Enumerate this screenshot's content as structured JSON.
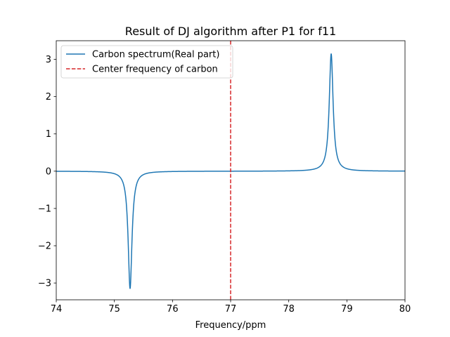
{
  "chart_data": {
    "type": "line",
    "title": "Result of DJ algorithm after P1 for f11",
    "xlabel": "Frequency/ppm",
    "ylabel": "",
    "xlim": [
      74,
      80
    ],
    "ylim": [
      -3.45,
      3.5
    ],
    "xticks": [
      74,
      75,
      76,
      77,
      78,
      79,
      80
    ],
    "xtick_labels": [
      "74",
      "75",
      "76",
      "77",
      "78",
      "79",
      "80"
    ],
    "yticks": [
      -3,
      -2,
      -1,
      0,
      1,
      2,
      3
    ],
    "ytick_labels": [
      "−3",
      "−2",
      "−1",
      "0",
      "1",
      "2",
      "3"
    ],
    "grid": false,
    "legend_position": "upper left",
    "series": [
      {
        "name": "Carbon spectrum(Real part)",
        "color": "#1f77b4",
        "style": "solid",
        "peaks": [
          {
            "center": 75.27,
            "height": -3.15,
            "hwhm": 0.04
          },
          {
            "center": 78.73,
            "height": 3.15,
            "hwhm": 0.04
          }
        ]
      }
    ],
    "vlines": [
      {
        "name": "Center frequency of carbon",
        "x": 77.0,
        "color": "#d62728",
        "style": "dashed"
      }
    ]
  }
}
